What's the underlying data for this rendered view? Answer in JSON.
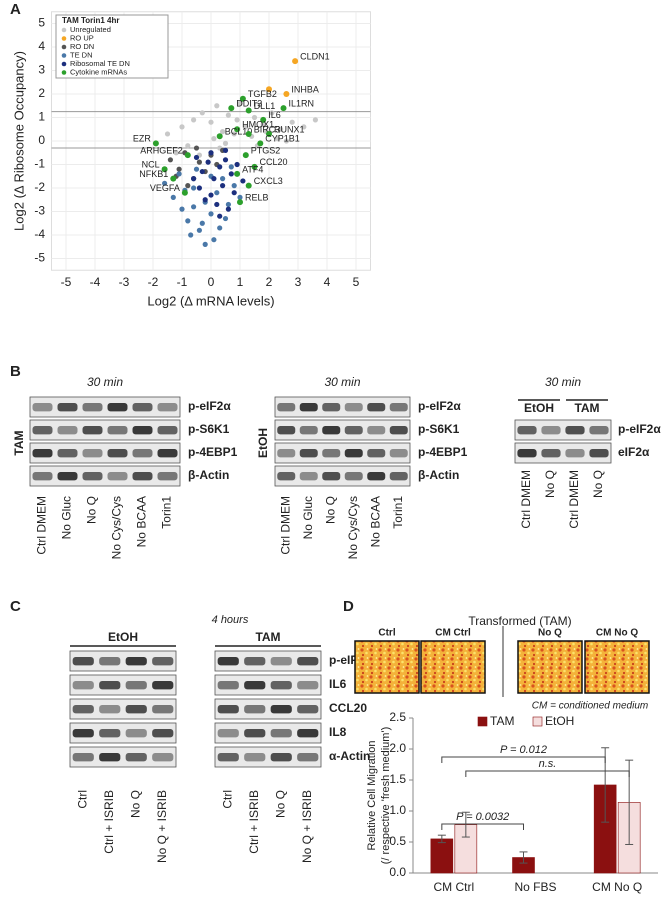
{
  "panel_labels": [
    "A",
    "B",
    "C",
    "D"
  ],
  "chart_data": [
    {
      "type": "scatter",
      "xlabel": "Log2 (Δ mRNA levels)",
      "ylabel": "Log2 (Δ Ribosome Occupancy)",
      "legend_title": "TAM Torin1 4hr",
      "legend": "upper left",
      "grid": true,
      "xlim": [
        -5.5,
        5.5
      ],
      "ylim": [
        -5.5,
        5.5
      ],
      "xticks": [
        -5,
        -4,
        -3,
        -2,
        -1,
        0,
        1,
        2,
        3,
        4,
        5
      ],
      "yticks": [
        -5,
        -4,
        -3,
        -2,
        -1,
        0,
        1,
        2,
        3,
        4,
        5
      ],
      "hlines": [
        1.25,
        -0.3
      ],
      "series": [
        {
          "name": "Unregulated",
          "color": "#c8c8c8",
          "x": [
            -1.5,
            -1.0,
            -0.6,
            -0.3,
            0,
            0.2,
            0.4,
            0.6,
            0.9,
            1.2,
            1.5,
            1.8,
            2.1,
            2.4,
            2.8,
            3.2,
            3.6,
            -0.8,
            0.1,
            0.5,
            1.0,
            1.4,
            1.9,
            2.3,
            -1.2,
            -0.4,
            0.3,
            0.8,
            1.6,
            2.6
          ],
          "values": [
            0.3,
            0.6,
            0.9,
            1.2,
            0.8,
            1.5,
            0.4,
            1.1,
            0.9,
            0.6,
            1.0,
            0.7,
            1.2,
            0.5,
            0.8,
            0.6,
            0.9,
            -0.2,
            0.1,
            -0.1,
            1.6,
            0.2,
            0.4,
            0.1,
            -0.5,
            -0.6,
            -0.3,
            0.3,
            -0.2,
            0.0
          ]
        },
        {
          "name": "RO UP",
          "color": "#f5a623",
          "x": [
            2.9,
            2.6,
            2.0
          ],
          "values": [
            3.4,
            2.0,
            2.2
          ],
          "labels": [
            "CLDN1",
            "INHBA",
            null
          ]
        },
        {
          "name": "RO DN",
          "color": "#555555",
          "x": [
            -1.4,
            -1.1,
            -0.9,
            -0.6,
            -0.4,
            -0.2,
            0,
            0.2,
            -0.8,
            -0.5,
            -1.2,
            0.4
          ],
          "values": [
            -0.8,
            -1.2,
            -0.5,
            -1.6,
            -0.9,
            -1.3,
            -0.6,
            -1.0,
            -1.9,
            -0.3,
            -1.5,
            -0.4
          ]
        },
        {
          "name": "TE DN",
          "color": "#4a78a8",
          "x": [
            -1.6,
            -1.3,
            -1.0,
            -0.8,
            -0.6,
            -0.4,
            -0.2,
            0,
            0.2,
            0.4,
            0.6,
            0.8,
            1.0,
            -1.1,
            -0.7,
            -0.3,
            0.1,
            0.5,
            -0.9,
            -0.5,
            0,
            0.3,
            -0.2,
            -0.6,
            0.7
          ],
          "values": [
            -1.8,
            -2.4,
            -2.9,
            -3.4,
            -2.0,
            -3.8,
            -2.6,
            -3.1,
            -2.2,
            -1.6,
            -2.7,
            -1.9,
            -2.4,
            -1.4,
            -4.0,
            -3.5,
            -4.2,
            -3.3,
            -2.1,
            -1.2,
            -1.5,
            -3.7,
            -4.4,
            -2.8,
            -1.1
          ]
        },
        {
          "name": "Ribosomal TE DN",
          "color": "#1c2f7e",
          "x": [
            -0.5,
            -0.3,
            -0.1,
            0.1,
            0.3,
            0.5,
            0.7,
            0.9,
            -0.4,
            0,
            0.4,
            0.8,
            0.2,
            0.6,
            -0.2,
            1.1,
            0,
            0.5,
            -0.6,
            0.3
          ],
          "values": [
            -0.7,
            -1.3,
            -0.9,
            -1.6,
            -1.1,
            -0.8,
            -1.4,
            -1.0,
            -2.0,
            -2.3,
            -1.9,
            -2.2,
            -2.7,
            -2.9,
            -2.5,
            -1.7,
            -0.5,
            -0.4,
            -1.6,
            -3.2
          ]
        },
        {
          "name": "Cytokine mRNAs",
          "color": "#2ca02c",
          "x": [
            1.1,
            0.7,
            1.3,
            2.5,
            1.8,
            0.9,
            0.3,
            1.3,
            2.0,
            1.7,
            -1.9,
            -0.8,
            1.2,
            1.5,
            -1.6,
            0.9,
            -1.3,
            1.3,
            -0.9,
            1.0
          ],
          "values": [
            1.8,
            1.4,
            1.3,
            1.4,
            0.9,
            0.5,
            0.2,
            0.3,
            0.3,
            -0.1,
            -0.1,
            -0.6,
            -0.6,
            -1.1,
            -1.2,
            -1.4,
            -1.6,
            -1.9,
            -2.2,
            -2.6
          ],
          "labels": [
            "TGFB2",
            "DDIT3",
            "DLL1",
            "IL1RN",
            "IL6",
            "HMOX1",
            "BCL10",
            "BIRC3",
            "RUNX1",
            "CYP1B1",
            "EZR",
            "ARHGEF2",
            "PTGS2",
            "CCL20",
            "NCL",
            "ATF4",
            "NFKB1",
            "CXCL3",
            "VEGFA",
            "RELB"
          ]
        }
      ]
    },
    {
      "type": "bar",
      "ylabel": [
        "Relative Cell Migration",
        "(/ respective 'fresh medium')"
      ],
      "categories": [
        "CM Ctrl",
        "No FBS",
        "CM No Q"
      ],
      "legend": "top",
      "ylim": [
        0,
        2.5
      ],
      "yticks": [
        {
          "value": 0,
          "label": "0.0"
        },
        0.5,
        {
          "value": 1,
          "label": "1.0"
        },
        1.5,
        {
          "value": 2,
          "label": "2.0"
        },
        2.5
      ],
      "series": [
        {
          "name": "TAM",
          "color": "#8b1010",
          "values": [
            0.55,
            0.25,
            1.42
          ],
          "errors": [
            0.06,
            0.09,
            0.6
          ]
        },
        {
          "name": "EtOH",
          "color": "#f5dede",
          "values": [
            0.78,
            null,
            1.14
          ],
          "errors": [
            0.2,
            null,
            0.68
          ]
        }
      ],
      "annotations": [
        "P = 0.012",
        "n.s.",
        "P = 0.0032"
      ]
    }
  ],
  "blots_b": [
    {
      "title": "30 min",
      "side": "TAM",
      "rows": [
        "p-eIF2α",
        "p-S6K1",
        "p-4EBP1",
        "β-Actin"
      ],
      "lanes": [
        "Ctrl DMEM",
        "No Gluc",
        "No Q",
        "No Cys/Cys",
        "No BCAA",
        "Torin1"
      ]
    },
    {
      "title": "30 min",
      "side": "EtOH",
      "rows": [
        "p-eIF2α",
        "p-S6K1",
        "p-4EBP1",
        "β-Actin"
      ],
      "lanes": [
        "Ctrl DMEM",
        "No Gluc",
        "No Q",
        "No Cys/Cys",
        "No BCAA",
        "Torin1"
      ]
    },
    {
      "title": "30 min",
      "groups": [
        "EtOH",
        "TAM"
      ],
      "rows": [
        "p-eIF2α",
        "eIF2α"
      ],
      "lanes": [
        "Ctrl DMEM",
        "No Q",
        "Ctrl DMEM",
        "No Q"
      ]
    }
  ],
  "blot_c": {
    "title": "4 hours",
    "groups": [
      "EtOH",
      "TAM"
    ],
    "rows": [
      "p-eIF2α",
      "IL6",
      "CCL20",
      "IL8",
      "α-Actin"
    ],
    "lanes": [
      "Ctrl",
      "Ctrl + ISRIB",
      "No Q",
      "No Q + ISRIB",
      "Ctrl",
      "Ctrl + ISRIB",
      "No Q",
      "No Q + ISRIB"
    ]
  },
  "images_d": {
    "title": "Transformed (TAM)",
    "labels": [
      "Ctrl",
      "CM Ctrl",
      "No Q",
      "CM No Q"
    ],
    "note": "CM = conditioned medium"
  }
}
